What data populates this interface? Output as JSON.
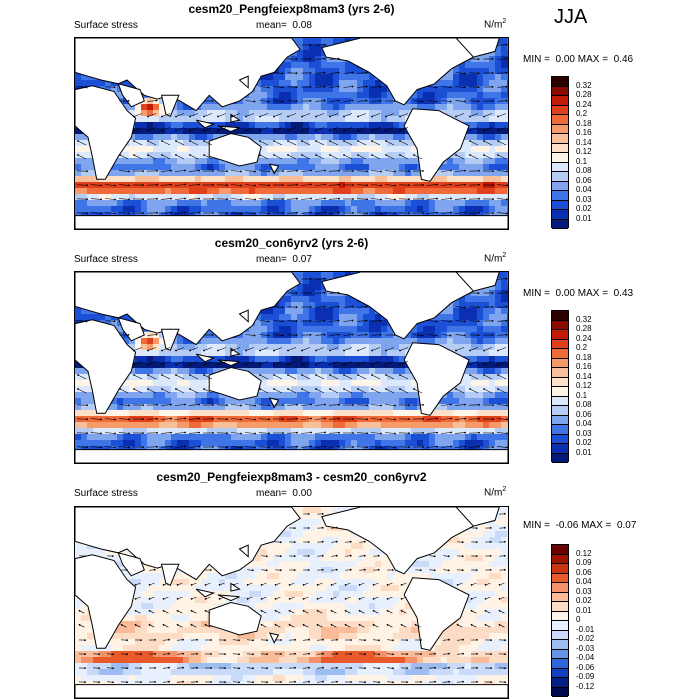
{
  "season": "JJA",
  "panels": [
    {
      "title": "cesm20_Pengfeiexp8mam3 (yrs 2-6)",
      "variable": "Surface stress",
      "mean_label": "mean=",
      "mean_value": "0.08",
      "units": "N/m",
      "units_sup": "2",
      "min_label": "MIN =",
      "min_value": "0.00",
      "max_label": "MAX =",
      "max_value": "0.46",
      "levels": [
        "0.32",
        "0.28",
        "0.24",
        "0.2",
        "0.18",
        "0.16",
        "0.14",
        "0.12",
        "0.1",
        "0.08",
        "0.06",
        "0.04",
        "0.03",
        "0.02",
        "0.01"
      ],
      "kind": "abs",
      "jet_strength": 1.0,
      "arabian_jet": 1.0
    },
    {
      "title": "cesm20_con6yrv2 (yrs 2-6)",
      "variable": "Surface stress",
      "mean_label": "mean=",
      "mean_value": "0.07",
      "units": "N/m",
      "units_sup": "2",
      "min_label": "MIN =",
      "min_value": "0.00",
      "max_label": "MAX =",
      "max_value": "0.43",
      "levels": [
        "0.32",
        "0.28",
        "0.24",
        "0.2",
        "0.18",
        "0.16",
        "0.14",
        "0.12",
        "0.1",
        "0.08",
        "0.06",
        "0.04",
        "0.03",
        "0.02",
        "0.01"
      ],
      "kind": "abs",
      "jet_strength": 0.85,
      "arabian_jet": 0.8
    },
    {
      "title": "cesm20_Pengfeiexp8mam3 - cesm20_con6yrv2",
      "variable": "Surface stress",
      "mean_label": "mean=",
      "mean_value": "0.00",
      "units": "N/m",
      "units_sup": "2",
      "min_label": "MIN =",
      "min_value": "-0.06",
      "max_label": "MAX =",
      "max_value": "0.07",
      "levels": [
        "0.12",
        "0.09",
        "0.06",
        "0.04",
        "0.03",
        "0.02",
        "0.01",
        "0",
        "-0.01",
        "-0.02",
        "-0.03",
        "-0.04",
        "-0.06",
        "-0.09",
        "-0.12"
      ],
      "kind": "diff",
      "jet_strength": 1.0,
      "arabian_jet": 0.0
    }
  ],
  "colors": {
    "abs_scale": [
      "#2b0000",
      "#8b0a00",
      "#c11a05",
      "#e0401c",
      "#f06a3a",
      "#f59a68",
      "#f8c09a",
      "#fde0c8",
      "#fff4e8",
      "#dce8fb",
      "#b5ccf5",
      "#7fa5ee",
      "#3f75e6",
      "#1a4fd6",
      "#0a2fb0",
      "#041a78"
    ],
    "diff_scale": [
      "#6a0000",
      "#9b1400",
      "#cc3310",
      "#e85a2c",
      "#f5916a",
      "#f9bb98",
      "#fddcc6",
      "#fff3e6",
      "#e8f0fd",
      "#c9dbf8",
      "#9dbdf2",
      "#6695e8",
      "#2f66dc",
      "#123fbd",
      "#041f86",
      "#000c50"
    ],
    "land": "#ffffff",
    "coast": "#000000"
  }
}
